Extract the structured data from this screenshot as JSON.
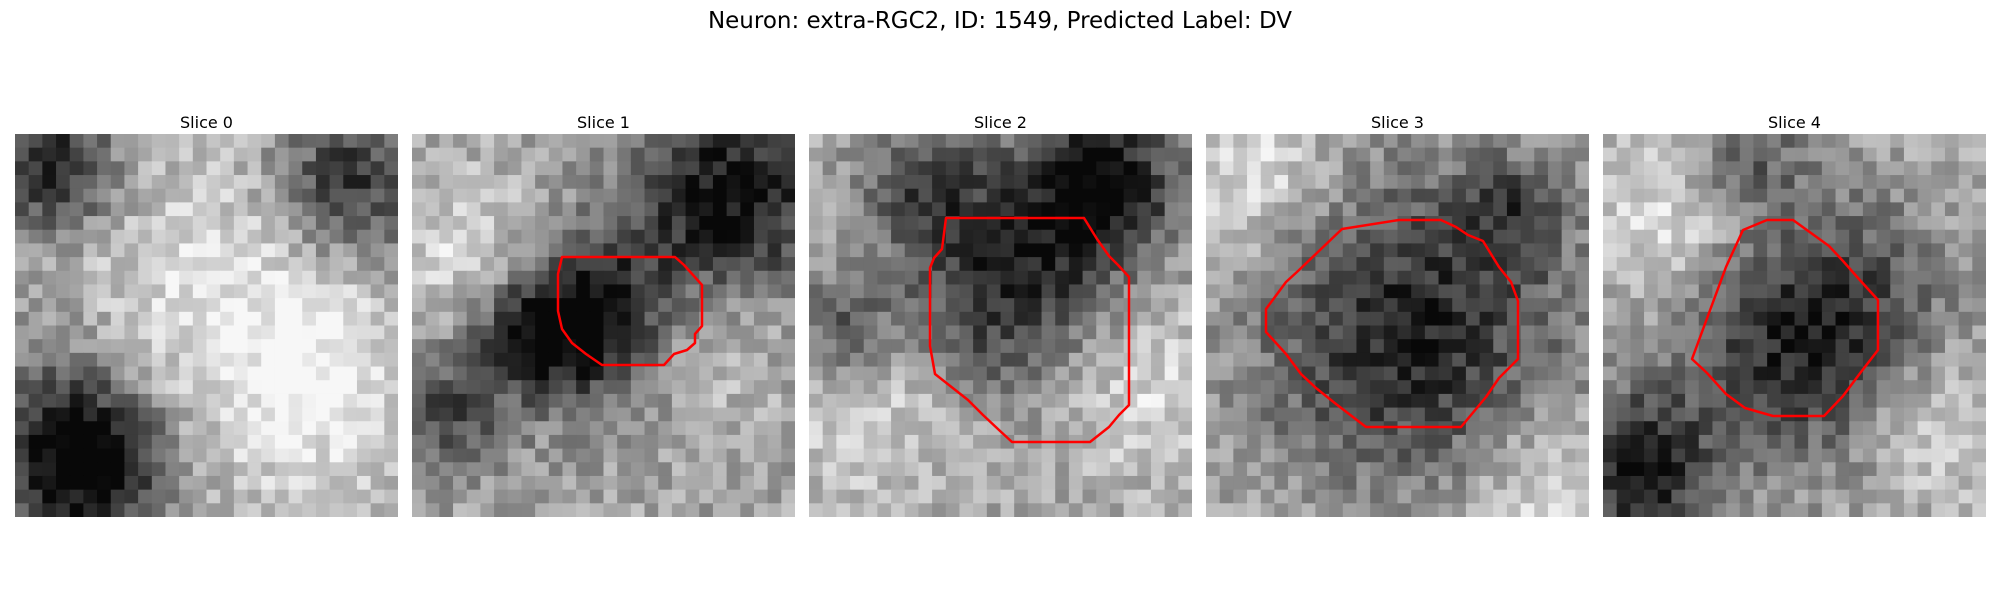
{
  "title": "Neuron: extra-RGC2, ID: 1549, Predicted Label: DV",
  "contour_color": "#ff0000",
  "panels": [
    {
      "label": "Slice 0",
      "has_contour": false
    },
    {
      "label": "Slice 1",
      "has_contour": true
    },
    {
      "label": "Slice 2",
      "has_contour": true
    },
    {
      "label": "Slice 3",
      "has_contour": true
    },
    {
      "label": "Slice 4",
      "has_contour": true
    }
  ]
}
